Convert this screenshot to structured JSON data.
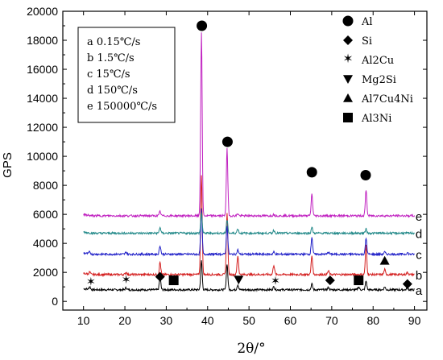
{
  "chart_data": {
    "type": "line",
    "xlabel": "2θ/°",
    "ylabel": "GPS",
    "xlim": [
      5,
      93
    ],
    "ylim": [
      -600,
      20000
    ],
    "xticks": [
      10,
      20,
      30,
      40,
      50,
      60,
      70,
      80,
      90
    ],
    "yticks": [
      0,
      2000,
      4000,
      6000,
      8000,
      10000,
      12000,
      14000,
      16000,
      18000,
      20000
    ],
    "grid": false,
    "cooling_legend": {
      "placement": "top-left",
      "entries": [
        {
          "key": "a",
          "label": "0.15℃/s"
        },
        {
          "key": "b",
          "label": "1.5℃/s"
        },
        {
          "key": "c",
          "label": "15℃/s"
        },
        {
          "key": "d",
          "label": "150℃/s"
        },
        {
          "key": "e",
          "label": "150000℃/s"
        }
      ]
    },
    "phase_legend": {
      "placement": "top-right",
      "entries": [
        {
          "marker": "circle",
          "label": "Al"
        },
        {
          "marker": "diamond",
          "label": "Si"
        },
        {
          "marker": "star",
          "label": "Al2Cu"
        },
        {
          "marker": "triangle-down",
          "label": "Mg2Si"
        },
        {
          "marker": "triangle-up",
          "label": "Al7Cu4Ni"
        },
        {
          "marker": "square",
          "label": "Al3Ni"
        }
      ]
    },
    "series": [
      {
        "name": "a",
        "color": "#000000",
        "baseline": 800,
        "peaks": [
          [
            11.5,
            200
          ],
          [
            20.3,
            150
          ],
          [
            28.5,
            900
          ],
          [
            38.5,
            2000
          ],
          [
            44.7,
            1800
          ],
          [
            47.3,
            350
          ],
          [
            56,
            200
          ],
          [
            65.2,
            400
          ],
          [
            69.2,
            150
          ],
          [
            76.5,
            200
          ],
          [
            78.3,
            600
          ],
          [
            82.8,
            200
          ],
          [
            88.3,
            150
          ]
        ]
      },
      {
        "name": "b",
        "color": "#d42020",
        "baseline": 1850,
        "peaks": [
          [
            11.5,
            150
          ],
          [
            20.3,
            150
          ],
          [
            28.5,
            850
          ],
          [
            38.5,
            6900
          ],
          [
            44.7,
            4300
          ],
          [
            47.3,
            1300
          ],
          [
            56,
            650
          ],
          [
            65.2,
            1300
          ],
          [
            69.2,
            250
          ],
          [
            78.3,
            2000
          ],
          [
            82.8,
            350
          ],
          [
            88.3,
            150
          ]
        ]
      },
      {
        "name": "c",
        "color": "#2020c8",
        "baseline": 3250,
        "peaks": [
          [
            11.5,
            150
          ],
          [
            20.3,
            150
          ],
          [
            28.5,
            600
          ],
          [
            38.5,
            3100
          ],
          [
            44.7,
            2000
          ],
          [
            47.3,
            300
          ],
          [
            56,
            150
          ],
          [
            65.2,
            1200
          ],
          [
            69.2,
            150
          ],
          [
            78.3,
            1100
          ],
          [
            82.8,
            150
          ],
          [
            88.3,
            100
          ]
        ]
      },
      {
        "name": "d",
        "color": "#208888",
        "baseline": 4700,
        "peaks": [
          [
            28.5,
            400
          ],
          [
            38.5,
            1400
          ],
          [
            44.7,
            900
          ],
          [
            47.3,
            300
          ],
          [
            56,
            200
          ],
          [
            65.2,
            400
          ],
          [
            78.3,
            300
          ]
        ]
      },
      {
        "name": "e",
        "color": "#c020c0",
        "baseline": 5900,
        "peaks": [
          [
            28.5,
            300
          ],
          [
            38.5,
            12700
          ],
          [
            44.7,
            4600
          ],
          [
            47.3,
            150
          ],
          [
            56,
            100
          ],
          [
            65.2,
            1500
          ],
          [
            78.3,
            1800
          ]
        ]
      }
    ],
    "phase_markers": [
      {
        "marker": "circle",
        "x": 38.6,
        "y": 19000
      },
      {
        "marker": "circle",
        "x": 44.8,
        "y": 11000
      },
      {
        "marker": "circle",
        "x": 65.2,
        "y": 8900
      },
      {
        "marker": "circle",
        "x": 78.2,
        "y": 8700
      },
      {
        "marker": "star",
        "x": 11.8,
        "y": 1300
      },
      {
        "marker": "star",
        "x": 20.3,
        "y": 1450
      },
      {
        "marker": "diamond",
        "x": 28.5,
        "y": 1700
      },
      {
        "marker": "square",
        "x": 31.8,
        "y": 1450
      },
      {
        "marker": "triangle-down",
        "x": 47.5,
        "y": 1500
      },
      {
        "marker": "star",
        "x": 56.4,
        "y": 1350
      },
      {
        "marker": "diamond",
        "x": 69.6,
        "y": 1450
      },
      {
        "marker": "square",
        "x": 76.5,
        "y": 1450
      },
      {
        "marker": "triangle-up",
        "x": 82.8,
        "y": 2800
      },
      {
        "marker": "diamond",
        "x": 88.3,
        "y": 1200
      }
    ]
  }
}
